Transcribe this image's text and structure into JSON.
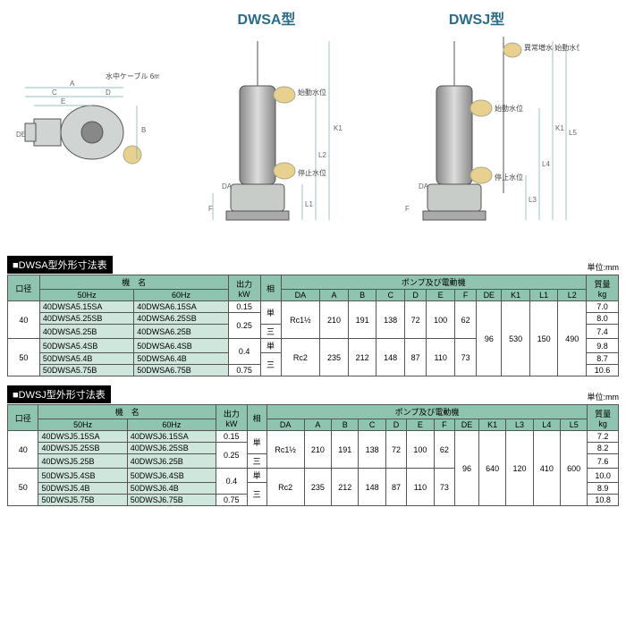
{
  "diagrams": {
    "left_label_cable": "水中ケーブル 6m",
    "dwsa_title": "DWSA型",
    "dwsj_title": "DWSJ型",
    "label_start": "始動水位",
    "label_stop": "停止水位",
    "label_abnormal": "異常増水\n始動水位",
    "dim_letters": [
      "A",
      "B",
      "C",
      "D",
      "E",
      "F",
      "DE",
      "DA",
      "K1",
      "L1",
      "L2",
      "L3",
      "L4",
      "L5"
    ]
  },
  "dwsa": {
    "title": "■DWSA型外形寸法表",
    "unit": "単位:mm",
    "headers": {
      "bore": "口径",
      "model": "機　名",
      "hz50": "50Hz",
      "hz60": "60Hz",
      "output": "出力\nkW",
      "phase": "相",
      "pump": "ポンプ及び電動機",
      "mass": "質量\nkg",
      "cols": [
        "DA",
        "A",
        "B",
        "C",
        "D",
        "E",
        "F",
        "DE",
        "K1",
        "L1",
        "L2"
      ]
    },
    "rows": [
      {
        "bore": "40",
        "m50": "40DWSA5.15SA",
        "m60": "40DWSA6.15SA",
        "kw": "0.15",
        "phase": "単",
        "da": "Rc1½",
        "a": "210",
        "b": "191",
        "c": "138",
        "d": "72",
        "e": "100",
        "f": "62",
        "de": "96",
        "k1": "530",
        "l1": "150",
        "l2": "490",
        "kg": "7.0"
      },
      {
        "bore": "40",
        "m50": "40DWSA5.25SB",
        "m60": "40DWSA6.25SB",
        "kw": "0.25",
        "phase": "単",
        "da": "Rc1½",
        "a": "210",
        "b": "191",
        "c": "138",
        "d": "72",
        "e": "100",
        "f": "62",
        "de": "96",
        "k1": "530",
        "l1": "150",
        "l2": "490",
        "kg": "8.0"
      },
      {
        "bore": "40",
        "m50": "40DWSA5.25B",
        "m60": "40DWSA6.25B",
        "kw": "0.25",
        "phase": "三",
        "da": "Rc1½",
        "a": "210",
        "b": "191",
        "c": "138",
        "d": "72",
        "e": "100",
        "f": "62",
        "de": "96",
        "k1": "530",
        "l1": "150",
        "l2": "490",
        "kg": "7.4"
      },
      {
        "bore": "50",
        "m50": "50DWSA5.4SB",
        "m60": "50DWSA6.4SB",
        "kw": "0.4",
        "phase": "単",
        "da": "Rc2",
        "a": "235",
        "b": "212",
        "c": "148",
        "d": "87",
        "e": "110",
        "f": "73",
        "de": "96",
        "k1": "530",
        "l1": "150",
        "l2": "490",
        "kg": "9.8"
      },
      {
        "bore": "50",
        "m50": "50DWSA5.4B",
        "m60": "50DWSA6.4B",
        "kw": "0.4",
        "phase": "三",
        "da": "Rc2",
        "a": "235",
        "b": "212",
        "c": "148",
        "d": "87",
        "e": "110",
        "f": "73",
        "de": "96",
        "k1": "530",
        "l1": "150",
        "l2": "490",
        "kg": "8.7"
      },
      {
        "bore": "50",
        "m50": "50DWSA5.75B",
        "m60": "50DWSA6.75B",
        "kw": "0.75",
        "phase": "三",
        "da": "Rc2",
        "a": "235",
        "b": "212",
        "c": "148",
        "d": "87",
        "e": "110",
        "f": "73",
        "de": "96",
        "k1": "530",
        "l1": "150",
        "l2": "490",
        "kg": "10.6"
      }
    ],
    "merge": {
      "bore": [
        [
          0,
          3
        ],
        [
          3,
          3
        ]
      ],
      "kw": [
        [
          0,
          1
        ],
        [
          1,
          2
        ],
        [
          3,
          2
        ],
        [
          5,
          1
        ]
      ],
      "phase": [
        [
          0,
          2
        ],
        [
          2,
          1
        ],
        [
          3,
          1
        ],
        [
          4,
          2
        ]
      ],
      "da": [
        [
          0,
          3
        ],
        [
          3,
          3
        ]
      ],
      "dims": [
        [
          0,
          3
        ],
        [
          3,
          3
        ]
      ],
      "shared": [
        [
          0,
          6
        ]
      ]
    }
  },
  "dwsj": {
    "title": "■DWSJ型外形寸法表",
    "unit": "単位:mm",
    "headers": {
      "bore": "口径",
      "model": "機　名",
      "hz50": "50Hz",
      "hz60": "60Hz",
      "output": "出力\nkW",
      "phase": "相",
      "pump": "ポンプ及び電動機",
      "mass": "質量\nkg",
      "cols": [
        "DA",
        "A",
        "B",
        "C",
        "D",
        "E",
        "F",
        "DE",
        "K1",
        "L3",
        "L4",
        "L5"
      ]
    },
    "rows": [
      {
        "bore": "40",
        "m50": "40DWSJ5.15SA",
        "m60": "40DWSJ6.15SA",
        "kw": "0.15",
        "phase": "単",
        "da": "Rc1½",
        "a": "210",
        "b": "191",
        "c": "138",
        "d": "72",
        "e": "100",
        "f": "62",
        "de": "96",
        "k1": "640",
        "l3": "120",
        "l4": "410",
        "l5": "600",
        "kg": "7.2"
      },
      {
        "bore": "40",
        "m50": "40DWSJ5.25SB",
        "m60": "40DWSJ6.25SB",
        "kw": "0.25",
        "phase": "単",
        "da": "Rc1½",
        "a": "210",
        "b": "191",
        "c": "138",
        "d": "72",
        "e": "100",
        "f": "62",
        "de": "96",
        "k1": "640",
        "l3": "120",
        "l4": "410",
        "l5": "600",
        "kg": "8.2"
      },
      {
        "bore": "40",
        "m50": "40DWSJ5.25B",
        "m60": "40DWSJ6.25B",
        "kw": "0.25",
        "phase": "三",
        "da": "Rc1½",
        "a": "210",
        "b": "191",
        "c": "138",
        "d": "72",
        "e": "100",
        "f": "62",
        "de": "96",
        "k1": "640",
        "l3": "120",
        "l4": "410",
        "l5": "600",
        "kg": "7.6"
      },
      {
        "bore": "50",
        "m50": "50DWSJ5.4SB",
        "m60": "50DWSJ6.4SB",
        "kw": "0.4",
        "phase": "単",
        "da": "Rc2",
        "a": "235",
        "b": "212",
        "c": "148",
        "d": "87",
        "e": "110",
        "f": "73",
        "de": "96",
        "k1": "640",
        "l3": "120",
        "l4": "410",
        "l5": "600",
        "kg": "10.0"
      },
      {
        "bore": "50",
        "m50": "50DWSJ5.4B",
        "m60": "50DWSJ6.4B",
        "kw": "0.4",
        "phase": "三",
        "da": "Rc2",
        "a": "235",
        "b": "212",
        "c": "148",
        "d": "87",
        "e": "110",
        "f": "73",
        "de": "96",
        "k1": "640",
        "l3": "120",
        "l4": "410",
        "l5": "600",
        "kg": "8.9"
      },
      {
        "bore": "50",
        "m50": "50DWSJ5.75B",
        "m60": "50DWSJ6.75B",
        "kw": "0.75",
        "phase": "三",
        "da": "Rc2",
        "a": "235",
        "b": "212",
        "c": "148",
        "d": "87",
        "e": "110",
        "f": "73",
        "de": "96",
        "k1": "640",
        "l3": "120",
        "l4": "410",
        "l5": "600",
        "kg": "10.8"
      }
    ]
  },
  "style": {
    "header_bg": "#8fc4b0",
    "model_bg": "#cfe6dc",
    "title_color": "#2a6b8c"
  }
}
